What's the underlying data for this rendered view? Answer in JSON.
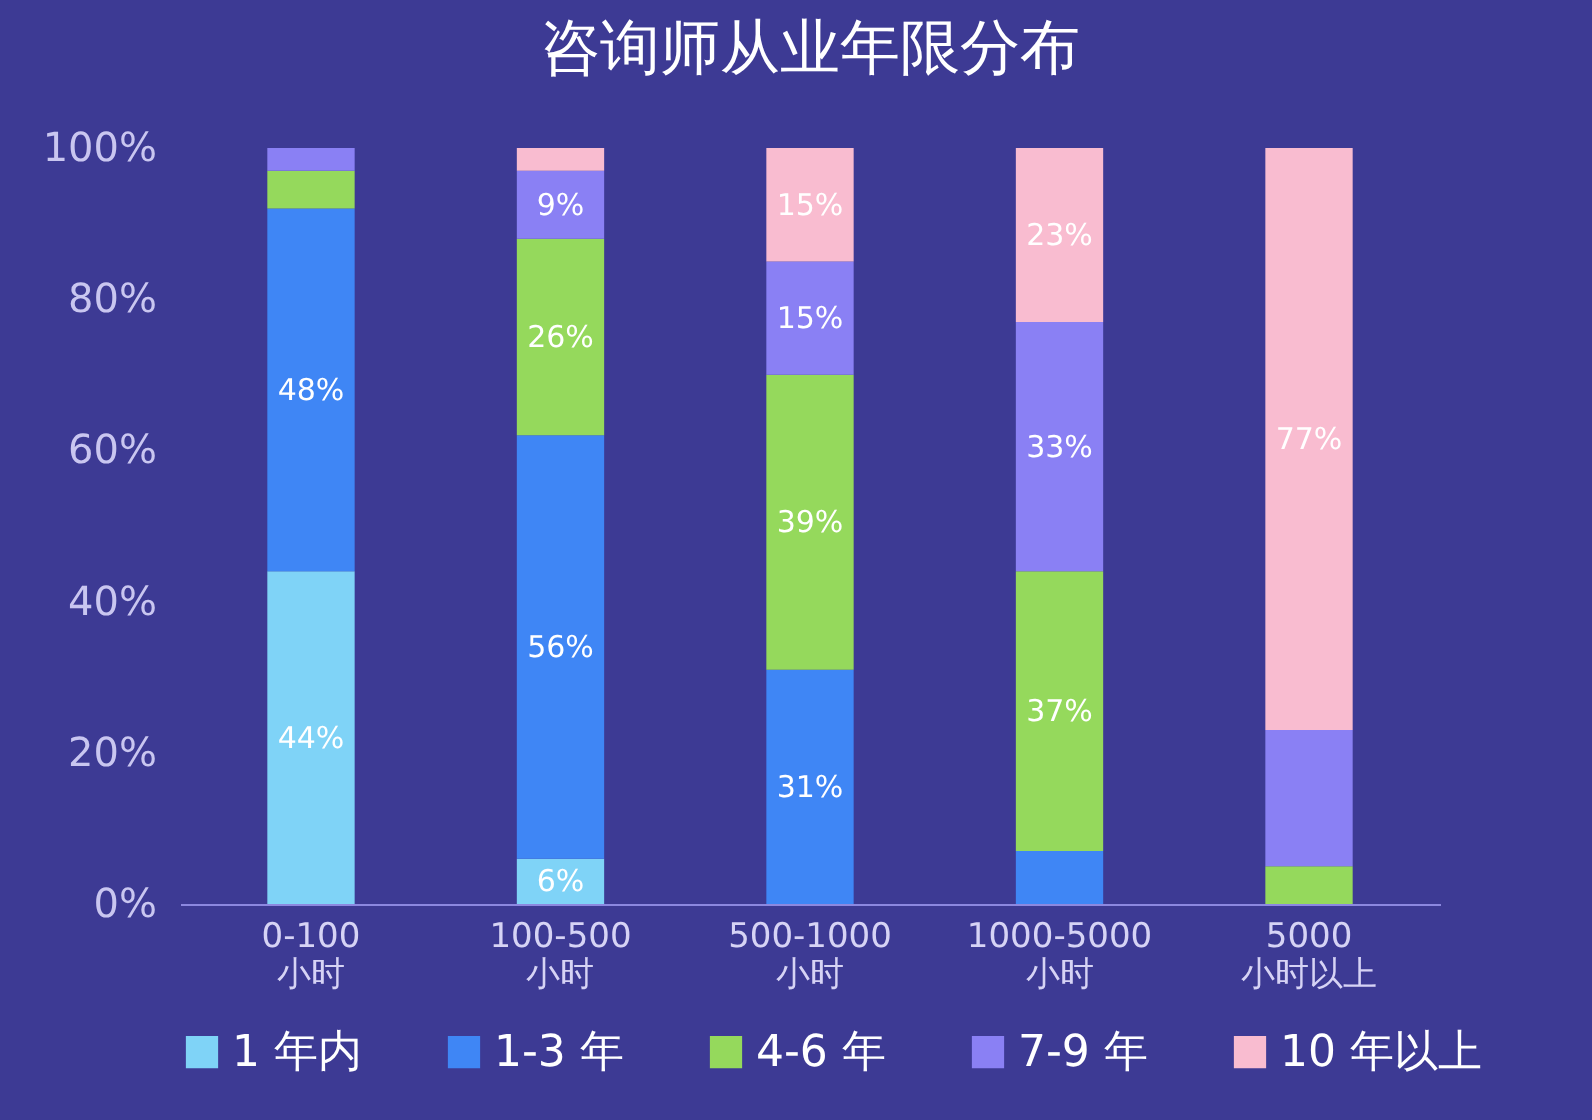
{
  "chart_data": {
    "type": "bar",
    "title": "咨询师从业年限分布",
    "stacked": true,
    "categories": [
      "0-100\n小时",
      "100-500\n小时",
      "500-1000\n小时",
      "1000-5000\n小时",
      "5000\n小时以上"
    ],
    "series": [
      {
        "name": "1 年内",
        "color": "#7fd3f7",
        "values": [
          44,
          6,
          0,
          0,
          0
        ],
        "value_labels": [
          "44%",
          "6%",
          null,
          null,
          null
        ]
      },
      {
        "name": "1-3 年",
        "color": "#3f86f5",
        "values": [
          48,
          56,
          31,
          7,
          0
        ],
        "value_labels": [
          "48%",
          "56%",
          "31%",
          null,
          null
        ]
      },
      {
        "name": "4-6 年",
        "color": "#95d95c",
        "values": [
          5,
          26,
          39,
          37,
          5
        ],
        "value_labels": [
          null,
          "26%",
          "39%",
          "37%",
          null
        ]
      },
      {
        "name": "7-9 年",
        "color": "#8a80f4",
        "values": [
          3,
          9,
          15,
          33,
          18
        ],
        "value_labels": [
          null,
          "9%",
          "15%",
          "33%",
          null
        ]
      },
      {
        "name": "10 年以上",
        "color": "#f9bcd0",
        "values": [
          0,
          3,
          15,
          23,
          77
        ],
        "value_labels": [
          null,
          null,
          "15%",
          "23%",
          "77%"
        ]
      }
    ],
    "ylim": [
      0,
      100
    ],
    "yticks": [
      {
        "value": 0,
        "label": "0%"
      },
      {
        "value": 20,
        "label": "20%"
      },
      {
        "value": 40,
        "label": "40%"
      },
      {
        "value": 60,
        "label": "60%"
      },
      {
        "value": 80,
        "label": "80%"
      },
      {
        "value": 100,
        "label": "100%"
      }
    ],
    "grid": false,
    "legend": "bottom"
  }
}
